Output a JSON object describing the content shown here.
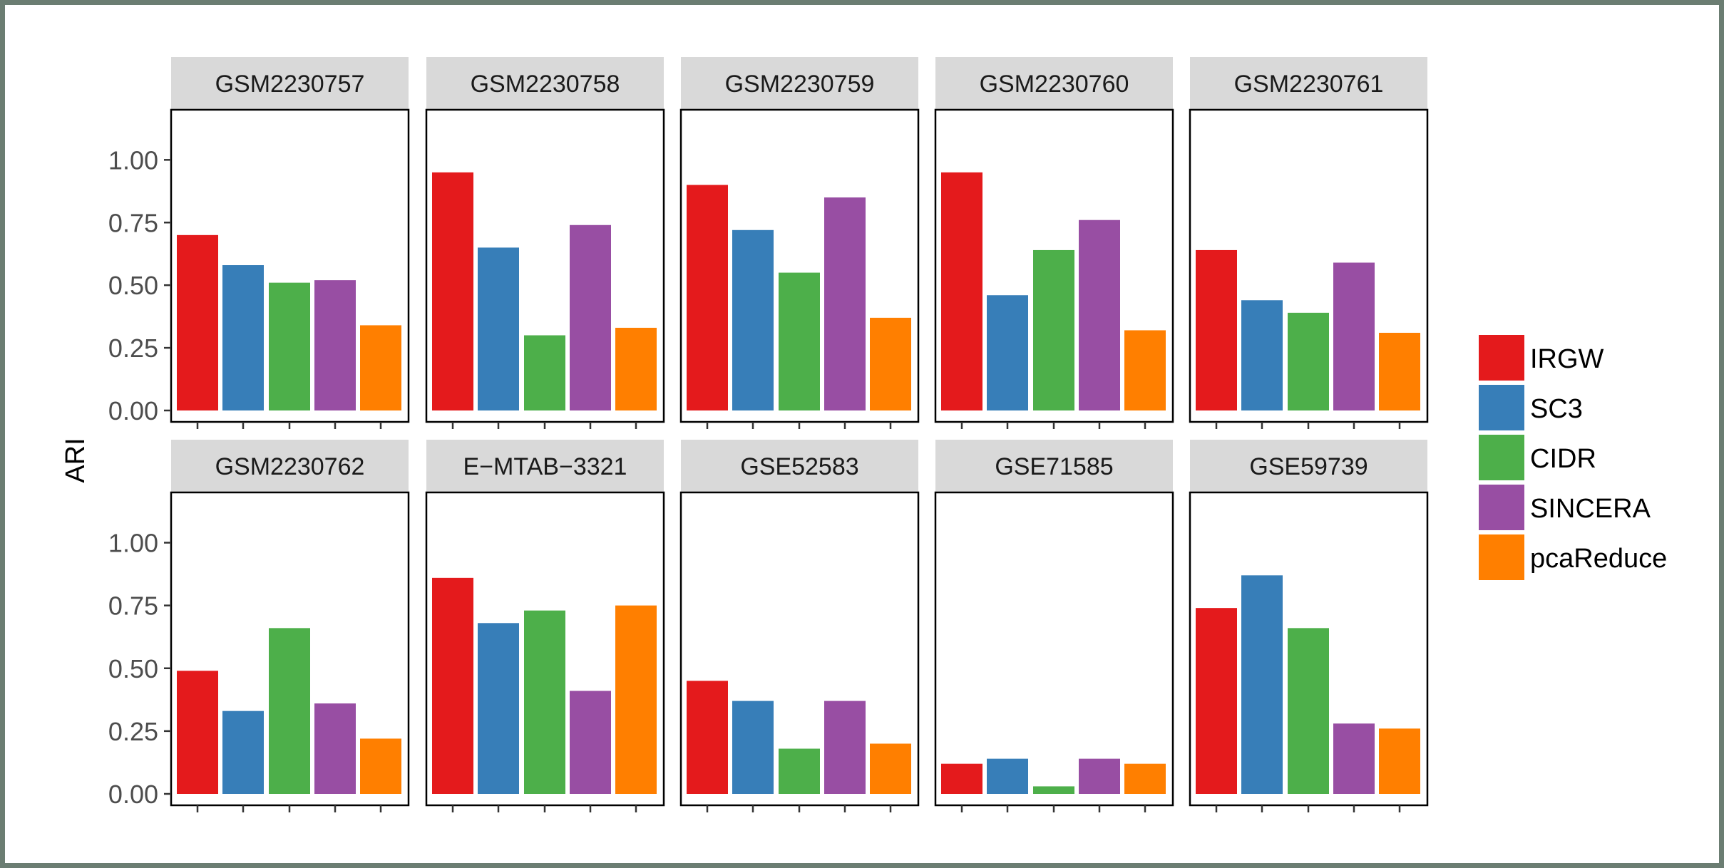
{
  "chart_data": {
    "type": "bar",
    "ylabel": "ARI",
    "ylim": [
      0,
      1.2
    ],
    "yticks": [
      0,
      0.25,
      0.5,
      0.75,
      1.0
    ],
    "ytick_labels": [
      "0.00",
      "0.25",
      "0.50",
      "0.75",
      "1.00"
    ],
    "grid": false,
    "legend_position": "right",
    "methods": [
      "IRGW",
      "SC3",
      "CIDR",
      "SINCERA",
      "pcaReduce"
    ],
    "colors": {
      "IRGW": "#E41A1C",
      "SC3": "#377EB8",
      "CIDR": "#4DAF4A",
      "SINCERA": "#984EA3",
      "pcaReduce": "#FF7F00"
    },
    "panels": [
      {
        "name": "GSM2230757",
        "values": [
          0.7,
          0.58,
          0.51,
          0.52,
          0.34
        ]
      },
      {
        "name": "GSM2230758",
        "values": [
          0.95,
          0.65,
          0.3,
          0.74,
          0.33
        ]
      },
      {
        "name": "GSM2230759",
        "values": [
          0.9,
          0.72,
          0.55,
          0.85,
          0.37
        ]
      },
      {
        "name": "GSM2230760",
        "values": [
          0.95,
          0.46,
          0.64,
          0.76,
          0.32
        ]
      },
      {
        "name": "GSM2230761",
        "values": [
          0.64,
          0.44,
          0.39,
          0.59,
          0.31
        ]
      },
      {
        "name": "GSM2230762",
        "values": [
          0.49,
          0.33,
          0.66,
          0.36,
          0.22
        ]
      },
      {
        "name": "E−MTAB−3321",
        "values": [
          0.86,
          0.68,
          0.73,
          0.41,
          0.75
        ]
      },
      {
        "name": "GSE52583",
        "values": [
          0.45,
          0.37,
          0.18,
          0.37,
          0.2
        ]
      },
      {
        "name": "GSE71585",
        "values": [
          0.12,
          0.14,
          0.03,
          0.14,
          0.12
        ]
      },
      {
        "name": "GSE59739",
        "values": [
          0.74,
          0.87,
          0.66,
          0.28,
          0.26
        ]
      }
    ]
  },
  "frame": {
    "border_color": "#6b7d72"
  }
}
